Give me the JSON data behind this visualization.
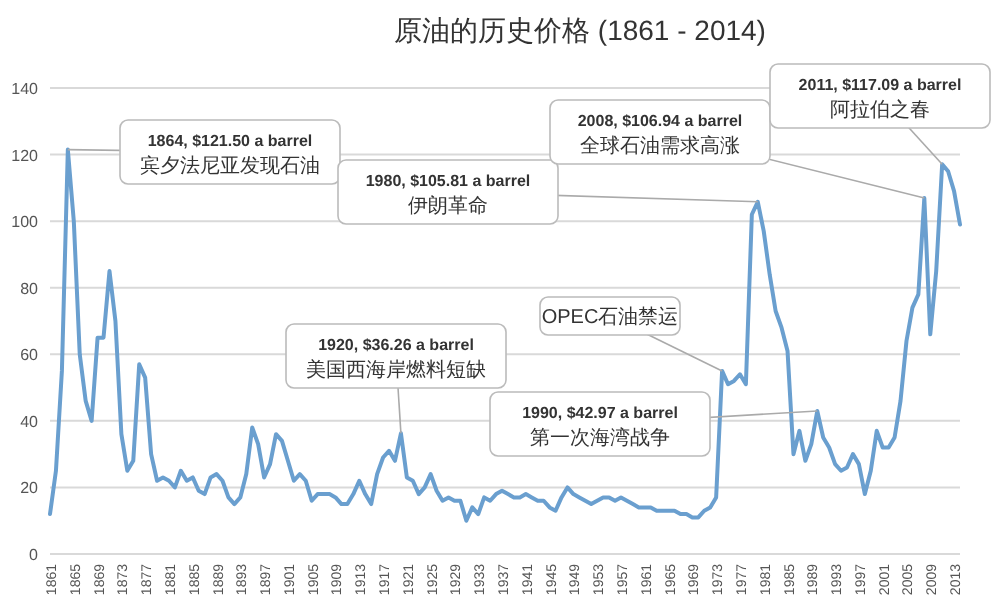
{
  "chart_data": {
    "type": "line",
    "title": "原油的历史价格 (1861 - 2014)",
    "x": [
      1861,
      1862,
      1863,
      1864,
      1865,
      1866,
      1867,
      1868,
      1869,
      1870,
      1871,
      1872,
      1873,
      1874,
      1875,
      1876,
      1877,
      1878,
      1879,
      1880,
      1881,
      1882,
      1883,
      1884,
      1885,
      1886,
      1887,
      1888,
      1889,
      1890,
      1891,
      1892,
      1893,
      1894,
      1895,
      1896,
      1897,
      1898,
      1899,
      1900,
      1901,
      1902,
      1903,
      1904,
      1905,
      1906,
      1907,
      1908,
      1909,
      1910,
      1911,
      1912,
      1913,
      1914,
      1915,
      1916,
      1917,
      1918,
      1919,
      1920,
      1921,
      1922,
      1923,
      1924,
      1925,
      1926,
      1927,
      1928,
      1929,
      1930,
      1931,
      1932,
      1933,
      1934,
      1935,
      1936,
      1937,
      1938,
      1939,
      1940,
      1941,
      1942,
      1943,
      1944,
      1945,
      1946,
      1947,
      1948,
      1949,
      1950,
      1951,
      1952,
      1953,
      1954,
      1955,
      1956,
      1957,
      1958,
      1959,
      1960,
      1961,
      1962,
      1963,
      1964,
      1965,
      1966,
      1967,
      1968,
      1969,
      1970,
      1971,
      1972,
      1973,
      1974,
      1975,
      1976,
      1977,
      1978,
      1979,
      1980,
      1981,
      1982,
      1983,
      1984,
      1985,
      1986,
      1987,
      1988,
      1989,
      1990,
      1991,
      1992,
      1993,
      1994,
      1995,
      1996,
      1997,
      1998,
      1999,
      2000,
      2001,
      2002,
      2003,
      2004,
      2005,
      2006,
      2007,
      2008,
      2009,
      2010,
      2011,
      2012,
      2013,
      2014
    ],
    "series": [
      {
        "color": "#6a9fcf",
        "values": [
          12,
          25,
          55,
          121.5,
          100,
          60,
          46,
          40,
          65,
          65,
          85,
          70,
          36,
          25,
          28,
          57,
          53,
          30,
          22,
          23,
          22,
          20,
          25,
          22,
          23,
          19,
          18,
          23,
          24,
          22,
          17,
          15,
          17,
          24,
          38,
          33,
          23,
          27,
          36,
          34,
          28,
          22,
          24,
          22,
          16,
          18,
          18,
          18,
          17,
          15,
          15,
          18,
          22,
          18,
          15,
          24,
          29,
          31,
          28,
          36.26,
          23,
          22,
          18,
          20,
          24,
          19,
          16,
          17,
          16,
          16,
          10,
          14,
          12,
          17,
          16,
          18,
          19,
          18,
          17,
          17,
          18,
          17,
          16,
          16,
          14,
          13,
          17,
          20,
          18,
          17,
          16,
          15,
          16,
          17,
          17,
          16,
          17,
          16,
          15,
          14,
          14,
          14,
          13,
          13,
          13,
          13,
          12,
          12,
          11,
          11,
          13,
          14,
          17,
          55,
          51,
          52,
          54,
          51,
          102,
          105.81,
          97,
          84,
          73,
          68,
          61,
          30,
          37,
          28,
          33,
          42.97,
          35,
          32,
          27,
          25,
          26,
          30,
          27,
          18,
          25,
          37,
          32,
          32,
          35,
          46,
          64,
          74,
          78,
          106.94,
          66,
          85,
          117.09,
          115,
          109,
          99
        ]
      }
    ],
    "xlim": [
      1861,
      2014
    ],
    "xticks": [
      1861,
      1865,
      1869,
      1873,
      1877,
      1881,
      1885,
      1889,
      1893,
      1897,
      1901,
      1905,
      1909,
      1913,
      1917,
      1921,
      1925,
      1929,
      1933,
      1937,
      1941,
      1945,
      1949,
      1953,
      1957,
      1961,
      1965,
      1969,
      1973,
      1977,
      1981,
      1985,
      1989,
      1993,
      1997,
      2001,
      2005,
      2009,
      2013
    ],
    "ylim": [
      0,
      140
    ],
    "yticks": [
      0,
      20,
      40,
      60,
      80,
      100,
      120,
      140
    ],
    "grid": "y",
    "marker": "none",
    "line_style": "solid",
    "annotations": [
      {
        "text": "1864, $121.50 a barrel\n宾夕法尼亚发现石油",
        "x": 1864,
        "y": 121.5
      },
      {
        "text": "1980, $105.81 a barrel\n伊朗革命",
        "x": 1980,
        "y": 105.81
      },
      {
        "text": "2008, $106.94 a barrel\n全球石油需求高涨",
        "x": 2008,
        "y": 106.94
      },
      {
        "text": "2011, $117.09 a barrel\n阿拉伯之春",
        "x": 2011,
        "y": 117.09
      },
      {
        "text": "1920, $36.26 a barrel\n美国西海岸燃料短缺",
        "x": 1920,
        "y": 36.26
      },
      {
        "text": "OPEC石油禁运",
        "x": 1974,
        "y": 55
      },
      {
        "text": "1990, $42.97 a barrel\n第一次海湾战争",
        "x": 1990,
        "y": 42.97
      }
    ]
  }
}
